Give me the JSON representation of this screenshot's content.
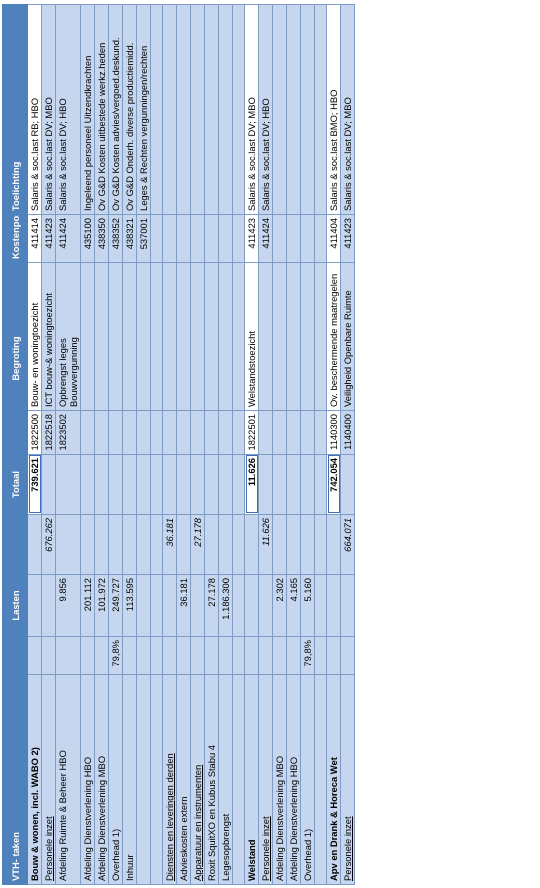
{
  "header": {
    "vth": "VTH- taken",
    "lasten": "Lasten",
    "totaal": "Totaal",
    "begroting": "Begroting",
    "kostenpost": "Kostenpost",
    "toelichting": "Toelichting"
  },
  "rows": [
    {
      "a": "Bouw & wonen, incl. WABO 2)",
      "b": "",
      "c": "",
      "d": "",
      "e": "739.621",
      "f": "1822500",
      "g": "Bouw- en woningtoezicht",
      "h": "411414",
      "i": "Salaris & soc.last RB; HBO",
      "cls": "hdr"
    },
    {
      "a": "Personele inzet",
      "b": "",
      "c": "",
      "d": "676.262",
      "e": "",
      "f": "1822518",
      "g": "ICT bouw-& woningtoezicht",
      "h": "411423",
      "i": "Salaris & soc.last DV; MBO",
      "cls": "u"
    },
    {
      "a": "Afdeling Ruimte & Beheer HBO",
      "b": "",
      "c": "9.856",
      "d": "",
      "e": "",
      "f": "1823502",
      "g": "Opbrengst leges Bouwvergunning",
      "h": "411424",
      "i": "Salaris & soc.last DV; HBO"
    },
    {
      "a": "Afdeling Dienstverlening HBO",
      "b": "",
      "c": "201.112",
      "d": "",
      "e": "",
      "f": "",
      "g": "",
      "h": "435100",
      "i": "Ingeleend personeel Uitzendkrachten"
    },
    {
      "a": "Afdeling Dienstverlening MBO",
      "b": "",
      "c": "101.972",
      "d": "",
      "e": "",
      "f": "",
      "g": "",
      "h": "438350",
      "i": "Ov G&D Kosten uitbestede werkz.heden"
    },
    {
      "a": "Overhead 1)",
      "b": "79,8%",
      "c": "249.727",
      "d": "",
      "e": "",
      "f": "",
      "g": "",
      "h": "438352",
      "i": "Ov G&D Kosten advies/vergoed.deskund."
    },
    {
      "a": "Inhuur",
      "b": "",
      "c": "113.595",
      "d": "",
      "e": "",
      "f": "",
      "g": "",
      "h": "438321",
      "i": "Ov G&D Onderh. diverse productiemidd."
    },
    {
      "a": "",
      "b": "",
      "c": "",
      "d": "",
      "e": "",
      "f": "",
      "g": "",
      "h": "537001",
      "i": "Leges & Rechten vergunningen/rechten"
    },
    {
      "a": "Diensten en leveringen derden",
      "b": "",
      "c": "",
      "d": "36.181",
      "e": "",
      "f": "",
      "g": "",
      "h": "",
      "i": "",
      "cls": "u"
    },
    {
      "a": "Advieskosten extern",
      "b": "",
      "c": "36.181",
      "d": "",
      "e": "",
      "f": "",
      "g": "",
      "h": "",
      "i": ""
    },
    {
      "a": "Apparatuur en instrumenten",
      "b": "",
      "c": "",
      "d": "27.178",
      "e": "",
      "f": "",
      "g": "",
      "h": "",
      "i": "",
      "cls": "u"
    },
    {
      "a": "Roxit SquitXO en Kubus Stabu 4",
      "b": "",
      "c": "27.178",
      "d": "",
      "e": "",
      "f": "",
      "g": "",
      "h": "",
      "i": ""
    },
    {
      "a": "Legesopbrengst",
      "b": "",
      "c": "1.186.300",
      "d": "",
      "e": "",
      "f": "",
      "g": "",
      "h": "",
      "i": ""
    },
    {
      "a": "Welstand",
      "b": "",
      "c": "",
      "d": "",
      "e": "11.626",
      "f": "1822501",
      "g": "Welstandstoezicht",
      "h": "411423",
      "i": "Salaris & soc.last DV; MBO",
      "cls": "hdr"
    },
    {
      "a": "Personele inzet",
      "b": "",
      "c": "",
      "d": "11.626",
      "e": "",
      "f": "",
      "g": "",
      "h": "411424",
      "i": "Salaris & soc.last DV; HBO",
      "cls": "u"
    },
    {
      "a": "Afdeling Dienstverlening MBO",
      "b": "",
      "c": "2.302",
      "d": "",
      "e": "",
      "f": "",
      "g": "",
      "h": "",
      "i": ""
    },
    {
      "a": "Afdeling Dienstverlening HBO",
      "b": "",
      "c": "4.165",
      "d": "",
      "e": "",
      "f": "",
      "g": "",
      "h": "",
      "i": ""
    },
    {
      "a": "Overhead 1)",
      "b": "79,8%",
      "c": "5.160",
      "d": "",
      "e": "",
      "f": "",
      "g": "",
      "h": "",
      "i": ""
    },
    {
      "a": "Apv en Drank & Horeca Wet",
      "b": "",
      "c": "",
      "d": "",
      "e": "742.054",
      "f": "1140300",
      "g": "Ov. beschermende maatregelen",
      "h": "411404",
      "i": "Salaris & soc.last BMO; HBO",
      "cls": "hdr"
    },
    {
      "a": "Personele inzet",
      "b": "",
      "c": "",
      "d": "664.071",
      "e": "",
      "f": "1140400",
      "g": "Veiligheid Openbare Ruimte",
      "h": "411423",
      "i": "Salaris & soc.last DV; MBO",
      "cls": "u"
    }
  ]
}
